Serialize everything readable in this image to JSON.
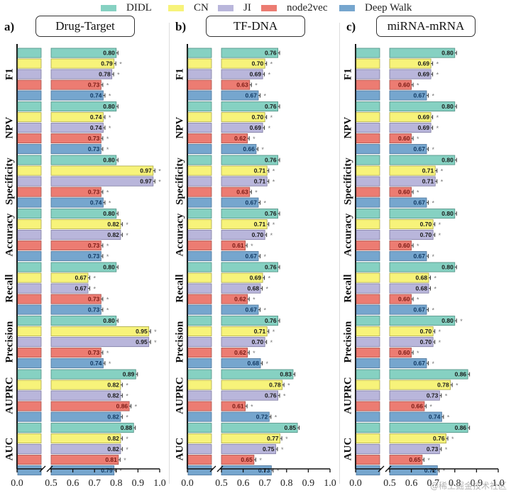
{
  "legend": [
    {
      "name": "DIDL",
      "color": "#86D1C2"
    },
    {
      "name": "CN",
      "color": "#F7F37A"
    },
    {
      "name": "JI",
      "color": "#B9B6DB"
    },
    {
      "name": "node2vec",
      "color": "#EC7C72"
    },
    {
      "name": "Deep Walk",
      "color": "#76A6CE"
    }
  ],
  "panels": [
    {
      "letter": "a)",
      "title": "Drug-Target"
    },
    {
      "letter": "b)",
      "title": "TF-DNA"
    },
    {
      "letter": "c)",
      "title": "miRNA-mRNA"
    }
  ],
  "watermark": "@稀土掘金技术社区",
  "chart_data": [
    {
      "type": "bar",
      "orientation": "horizontal",
      "title": "Drug-Target",
      "categories": [
        "F1",
        "NPV",
        "Specificity",
        "Accuracy",
        "Recall",
        "Precision",
        "AUPRC",
        "AUC"
      ],
      "series": [
        {
          "name": "DIDL",
          "values": [
            0.8,
            0.8,
            0.8,
            0.8,
            0.8,
            0.8,
            0.89,
            0.88
          ],
          "significant": [
            false,
            false,
            false,
            false,
            false,
            false,
            false,
            false
          ]
        },
        {
          "name": "CN",
          "values": [
            0.79,
            0.74,
            0.97,
            0.82,
            0.67,
            0.95,
            0.82,
            0.82
          ],
          "significant": [
            true,
            true,
            true,
            true,
            true,
            true,
            true,
            true
          ]
        },
        {
          "name": "JI",
          "values": [
            0.78,
            0.74,
            0.97,
            0.82,
            0.67,
            0.95,
            0.82,
            0.82
          ],
          "significant": [
            true,
            true,
            true,
            true,
            true,
            true,
            true,
            true
          ]
        },
        {
          "name": "node2vec",
          "values": [
            0.73,
            0.73,
            0.73,
            0.73,
            0.73,
            0.73,
            0.86,
            0.81
          ],
          "significant": [
            true,
            true,
            true,
            true,
            true,
            true,
            true,
            true
          ]
        },
        {
          "name": "Deep Walk",
          "values": [
            0.74,
            0.73,
            0.74,
            0.73,
            0.73,
            0.74,
            0.82,
            0.79
          ],
          "significant": [
            true,
            true,
            true,
            true,
            true,
            true,
            true,
            true
          ]
        }
      ],
      "xlim": [
        0.0,
        1.0
      ],
      "axis_break": [
        0.35,
        0.5
      ],
      "xticks": [
        "0.0",
        "0.5",
        "0.6",
        "0.7",
        "0.8",
        "0.9",
        "1.0"
      ],
      "grid": false
    },
    {
      "type": "bar",
      "orientation": "horizontal",
      "title": "TF-DNA",
      "categories": [
        "F1",
        "NPV",
        "Specificity",
        "Accuracy",
        "Recall",
        "Precision",
        "AUPRC",
        "AUC"
      ],
      "series": [
        {
          "name": "DIDL",
          "values": [
            0.76,
            0.76,
            0.76,
            0.76,
            0.76,
            0.76,
            0.83,
            0.85
          ],
          "significant": [
            false,
            false,
            false,
            false,
            false,
            false,
            false,
            false
          ]
        },
        {
          "name": "CN",
          "values": [
            0.7,
            0.7,
            0.71,
            0.71,
            0.69,
            0.71,
            0.78,
            0.77
          ],
          "significant": [
            true,
            true,
            true,
            true,
            true,
            true,
            true,
            true
          ]
        },
        {
          "name": "JI",
          "values": [
            0.69,
            0.69,
            0.71,
            0.7,
            0.68,
            0.7,
            0.76,
            0.75
          ],
          "significant": [
            true,
            true,
            true,
            true,
            true,
            true,
            true,
            true
          ]
        },
        {
          "name": "node2vec",
          "values": [
            0.63,
            0.62,
            0.63,
            0.61,
            0.62,
            0.62,
            0.61,
            0.65
          ],
          "significant": [
            true,
            true,
            true,
            true,
            true,
            true,
            true,
            true
          ]
        },
        {
          "name": "Deep Walk",
          "values": [
            0.67,
            0.66,
            0.67,
            0.67,
            0.67,
            0.68,
            0.72,
            0.73
          ],
          "significant": [
            true,
            true,
            true,
            true,
            true,
            true,
            true,
            true
          ]
        }
      ],
      "xlim": [
        0.0,
        1.0
      ],
      "axis_break": [
        0.35,
        0.5
      ],
      "xticks": [
        "0.0",
        "0.5",
        "0.6",
        "0.7",
        "0.8",
        "0.9",
        "1.0"
      ],
      "grid": false
    },
    {
      "type": "bar",
      "orientation": "horizontal",
      "title": "miRNA-mRNA",
      "categories": [
        "F1",
        "NPV",
        "Specificity",
        "Accuracy",
        "Recall",
        "Precision",
        "AUPRC",
        "AUC"
      ],
      "series": [
        {
          "name": "DIDL",
          "values": [
            0.8,
            0.8,
            0.8,
            0.8,
            0.8,
            0.8,
            0.86,
            0.86
          ],
          "significant": [
            false,
            false,
            false,
            false,
            false,
            true,
            false,
            false
          ]
        },
        {
          "name": "CN",
          "values": [
            0.69,
            0.69,
            0.71,
            0.7,
            0.68,
            0.7,
            0.78,
            0.76
          ],
          "significant": [
            true,
            true,
            true,
            true,
            true,
            true,
            true,
            true
          ]
        },
        {
          "name": "JI",
          "values": [
            0.69,
            0.69,
            0.71,
            0.7,
            0.68,
            0.7,
            0.73,
            0.73
          ],
          "significant": [
            true,
            true,
            true,
            true,
            true,
            true,
            true,
            true
          ]
        },
        {
          "name": "node2vec",
          "values": [
            0.6,
            0.6,
            0.6,
            0.6,
            0.6,
            0.6,
            0.66,
            0.65
          ],
          "significant": [
            true,
            true,
            true,
            true,
            true,
            true,
            true,
            true
          ]
        },
        {
          "name": "Deep Walk",
          "values": [
            0.67,
            0.67,
            0.67,
            0.67,
            0.67,
            0.67,
            0.74,
            0.72
          ],
          "significant": [
            true,
            true,
            true,
            true,
            true,
            true,
            true,
            true
          ]
        }
      ],
      "xlim": [
        0.0,
        1.0
      ],
      "axis_break": [
        0.35,
        0.5
      ],
      "xticks": [
        "0.0",
        "0.5",
        "0.6",
        "0.7",
        "0.8",
        "0.9",
        "1.0"
      ],
      "grid": false
    }
  ]
}
